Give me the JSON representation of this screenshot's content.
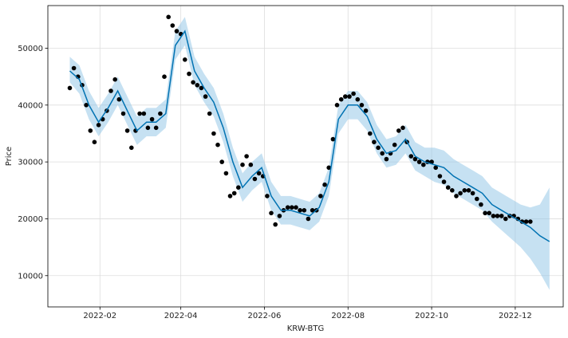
{
  "chart_data": {
    "type": "line",
    "title": "",
    "xlabel": "KRW-BTG",
    "ylabel": "Price",
    "x_tick_labels": [
      "2022-02",
      "2022-04",
      "2022-06",
      "2022-08",
      "2022-10",
      "2022-12"
    ],
    "y_tick_labels": [
      "10000",
      "20000",
      "30000",
      "40000",
      "50000"
    ],
    "x_ticks": [
      "2022-02-01",
      "2022-04-01",
      "2022-06-01",
      "2022-08-01",
      "2022-10-01",
      "2022-12-01"
    ],
    "y_ticks": [
      10000,
      20000,
      30000,
      40000,
      50000
    ],
    "xlim": [
      "2021-12-25",
      "2023-01-05"
    ],
    "ylim": [
      4500,
      57500
    ],
    "grid": true,
    "colors": {
      "observed": "#000000",
      "forecast": "#0072B2",
      "uncertainty": "#8ec3e6"
    },
    "series": [
      {
        "kind": "observed-points",
        "x": [
          "2022-01-10",
          "2022-01-13",
          "2022-01-16",
          "2022-01-19",
          "2022-01-22",
          "2022-01-25",
          "2022-01-28",
          "2022-01-31",
          "2022-02-03",
          "2022-02-06",
          "2022-02-09",
          "2022-02-12",
          "2022-02-15",
          "2022-02-18",
          "2022-02-21",
          "2022-02-24",
          "2022-02-27",
          "2022-03-02",
          "2022-03-05",
          "2022-03-08",
          "2022-03-11",
          "2022-03-14",
          "2022-03-17",
          "2022-03-20",
          "2022-03-23",
          "2022-03-26",
          "2022-03-29",
          "2022-04-01",
          "2022-04-04",
          "2022-04-07",
          "2022-04-10",
          "2022-04-13",
          "2022-04-16",
          "2022-04-19",
          "2022-04-22",
          "2022-04-25",
          "2022-04-28",
          "2022-05-01",
          "2022-05-04",
          "2022-05-07",
          "2022-05-10",
          "2022-05-13",
          "2022-05-16",
          "2022-05-19",
          "2022-05-22",
          "2022-05-25",
          "2022-05-28",
          "2022-05-31",
          "2022-06-03",
          "2022-06-06",
          "2022-06-09",
          "2022-06-12",
          "2022-06-15",
          "2022-06-18",
          "2022-06-21",
          "2022-06-24",
          "2022-06-27",
          "2022-06-30",
          "2022-07-03",
          "2022-07-06",
          "2022-07-09",
          "2022-07-12",
          "2022-07-15",
          "2022-07-18",
          "2022-07-21",
          "2022-07-24",
          "2022-07-27",
          "2022-07-30",
          "2022-08-02",
          "2022-08-05",
          "2022-08-08",
          "2022-08-11",
          "2022-08-14",
          "2022-08-17",
          "2022-08-20",
          "2022-08-23",
          "2022-08-26",
          "2022-08-29",
          "2022-09-01",
          "2022-09-04",
          "2022-09-07",
          "2022-09-10",
          "2022-09-13",
          "2022-09-16",
          "2022-09-19",
          "2022-09-22",
          "2022-09-25",
          "2022-09-28",
          "2022-10-01",
          "2022-10-04",
          "2022-10-07",
          "2022-10-10",
          "2022-10-13",
          "2022-10-16",
          "2022-10-19",
          "2022-10-22",
          "2022-10-25",
          "2022-10-28",
          "2022-10-31",
          "2022-11-03",
          "2022-11-06",
          "2022-11-09",
          "2022-11-12",
          "2022-11-15",
          "2022-11-18",
          "2022-11-21",
          "2022-11-24",
          "2022-11-27",
          "2022-11-30",
          "2022-12-03",
          "2022-12-06",
          "2022-12-09",
          "2022-12-12"
        ],
        "y": [
          43000,
          46500,
          45000,
          43500,
          40000,
          35500,
          33500,
          36500,
          37500,
          39000,
          42500,
          44500,
          41000,
          38500,
          35500,
          32500,
          35500,
          38500,
          38500,
          36000,
          37500,
          36000,
          38500,
          45000,
          55500,
          54000,
          53000,
          52500,
          48000,
          45500,
          44000,
          43500,
          43000,
          41500,
          38500,
          35000,
          33000,
          30000,
          28000,
          24000,
          24500,
          25500,
          29500,
          31000,
          29500,
          27000,
          28000,
          27500,
          24000,
          21000,
          19000,
          20500,
          21500,
          22000,
          22000,
          22000,
          21500,
          21500,
          20000,
          21500,
          21500,
          24000,
          26000,
          29000,
          34000,
          40000,
          41000,
          41500,
          41500,
          42000,
          41000,
          40000,
          39000,
          35000,
          33500,
          32500,
          31500,
          30500,
          31500,
          33000,
          35500,
          36000,
          33500,
          31000,
          30500,
          30000,
          29500,
          30000,
          30000,
          29000,
          27500,
          26500,
          25500,
          25000,
          24000,
          24500,
          25000,
          25000,
          24500,
          23500,
          22500,
          21000,
          21000,
          20500,
          20500,
          20500,
          20000,
          20500,
          20500,
          20000,
          19500,
          19500,
          19500
        ]
      },
      {
        "kind": "forecast-line",
        "x": [
          "2022-01-10",
          "2022-01-17",
          "2022-01-24",
          "2022-01-31",
          "2022-02-07",
          "2022-02-14",
          "2022-02-21",
          "2022-02-28",
          "2022-03-07",
          "2022-03-14",
          "2022-03-21",
          "2022-03-28",
          "2022-04-04",
          "2022-04-11",
          "2022-04-18",
          "2022-04-25",
          "2022-05-02",
          "2022-05-09",
          "2022-05-16",
          "2022-05-23",
          "2022-05-30",
          "2022-06-06",
          "2022-06-13",
          "2022-06-20",
          "2022-06-27",
          "2022-07-04",
          "2022-07-11",
          "2022-07-18",
          "2022-07-25",
          "2022-08-01",
          "2022-08-08",
          "2022-08-15",
          "2022-08-22",
          "2022-08-29",
          "2022-09-05",
          "2022-09-12",
          "2022-09-19",
          "2022-09-26",
          "2022-10-03",
          "2022-10-10",
          "2022-10-17",
          "2022-10-24",
          "2022-10-31",
          "2022-11-07",
          "2022-11-14",
          "2022-11-21",
          "2022-11-28",
          "2022-12-05",
          "2022-12-12",
          "2022-12-19",
          "2022-12-26"
        ],
        "y": [
          46000,
          44500,
          40000,
          37000,
          39500,
          42500,
          39000,
          35500,
          37000,
          37000,
          38500,
          50500,
          53000,
          46000,
          43000,
          40500,
          36000,
          30000,
          25500,
          27500,
          29000,
          24000,
          21500,
          21500,
          21000,
          20500,
          22000,
          26500,
          37500,
          40000,
          40000,
          38000,
          34000,
          31500,
          32000,
          34000,
          31000,
          30000,
          29500,
          29000,
          27500,
          26500,
          25500,
          24500,
          22500,
          21500,
          20500,
          19500,
          18500,
          17000,
          16000
        ]
      },
      {
        "kind": "uncertainty-band",
        "x": [
          "2022-01-10",
          "2022-01-17",
          "2022-01-24",
          "2022-01-31",
          "2022-02-07",
          "2022-02-14",
          "2022-02-21",
          "2022-02-28",
          "2022-03-07",
          "2022-03-14",
          "2022-03-21",
          "2022-03-28",
          "2022-04-04",
          "2022-04-11",
          "2022-04-18",
          "2022-04-25",
          "2022-05-02",
          "2022-05-09",
          "2022-05-16",
          "2022-05-23",
          "2022-05-30",
          "2022-06-06",
          "2022-06-13",
          "2022-06-20",
          "2022-06-27",
          "2022-07-04",
          "2022-07-11",
          "2022-07-18",
          "2022-07-25",
          "2022-08-01",
          "2022-08-08",
          "2022-08-15",
          "2022-08-22",
          "2022-08-29",
          "2022-09-05",
          "2022-09-12",
          "2022-09-19",
          "2022-09-26",
          "2022-10-03",
          "2022-10-10",
          "2022-10-17",
          "2022-10-24",
          "2022-10-31",
          "2022-11-07",
          "2022-11-14",
          "2022-11-21",
          "2022-11-28",
          "2022-12-05",
          "2022-12-12",
          "2022-12-19",
          "2022-12-26"
        ],
        "lower": [
          44000,
          42000,
          37500,
          34500,
          37000,
          40000,
          36500,
          33000,
          34500,
          34500,
          36000,
          48000,
          50500,
          43500,
          40500,
          38000,
          33500,
          27500,
          23000,
          25000,
          26500,
          21500,
          19000,
          19000,
          18500,
          18000,
          19500,
          24000,
          35000,
          37500,
          37500,
          35500,
          31500,
          29000,
          29500,
          31500,
          28500,
          27500,
          26500,
          26000,
          24500,
          23500,
          22500,
          21500,
          19500,
          18000,
          16500,
          15000,
          13000,
          10500,
          7500
        ],
        "upper": [
          48500,
          47000,
          42500,
          39500,
          42000,
          45000,
          41500,
          38000,
          39500,
          39500,
          41000,
          53000,
          55500,
          48500,
          45500,
          43000,
          38500,
          32500,
          28000,
          30000,
          31500,
          26500,
          24000,
          24000,
          23500,
          23000,
          24500,
          29000,
          40000,
          42500,
          42500,
          40500,
          36500,
          34000,
          34500,
          36500,
          33500,
          32500,
          32500,
          32000,
          30500,
          29500,
          28500,
          27500,
          25500,
          24500,
          23500,
          22500,
          22000,
          22500,
          25500
        ]
      }
    ]
  }
}
